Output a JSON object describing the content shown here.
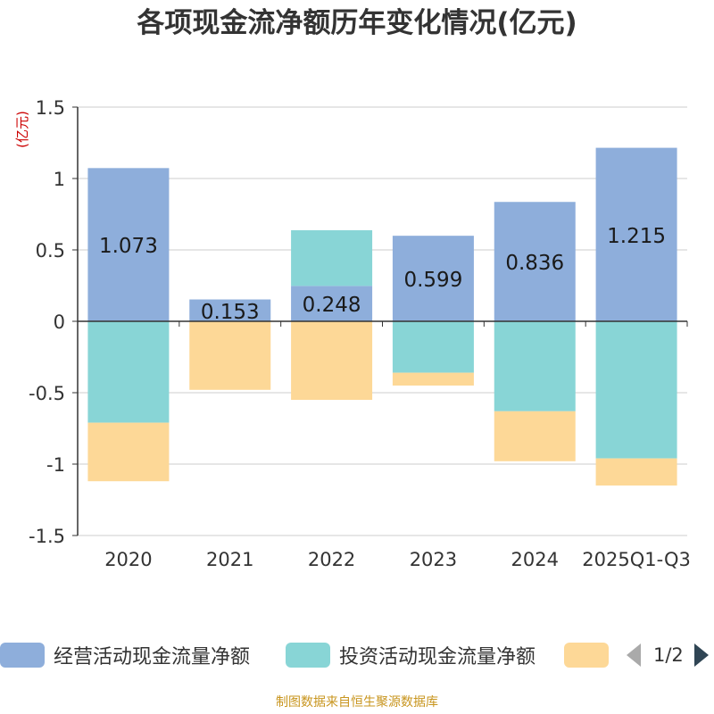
{
  "chart_data": {
    "type": "bar",
    "stacked": true,
    "title": "各项现金流净额历年变化情况(亿元)",
    "ylabel": "(亿元)",
    "xlabel": "",
    "ylim": [
      -1.5,
      1.5
    ],
    "yticks": [
      1.5,
      1,
      0.5,
      0,
      -0.5,
      -1,
      -1.5
    ],
    "ytick_labels": [
      "1.5",
      "1",
      "0.5",
      "0",
      "-0.5",
      "-1",
      "-1.5"
    ],
    "categories": [
      "2020",
      "2021",
      "2022",
      "2023",
      "2024",
      "2025Q1-Q3"
    ],
    "series": [
      {
        "name": "经营活动现金流量净额",
        "color": "#8eaedb",
        "values": [
          1.073,
          0.153,
          0.248,
          0.599,
          0.836,
          1.215
        ],
        "labels": [
          "1.073",
          "0.153",
          "0.248",
          "0.599",
          "0.836",
          "1.215"
        ]
      },
      {
        "name": "投资活动现金流量净额",
        "color": "#88d5d6",
        "values": [
          -0.71,
          0.0,
          0.39,
          -0.36,
          -0.63,
          -0.96
        ]
      },
      {
        "name": "",
        "color": "#fdd897",
        "values": [
          -0.41,
          -0.48,
          -0.55,
          -0.09,
          -0.35,
          -0.19
        ]
      }
    ],
    "legend_position": "bottom",
    "grid": true
  },
  "legend": {
    "items": [
      {
        "label": "经营活动现金流量净额",
        "color": "#8eaedb"
      },
      {
        "label": "投资活动现金流量净额",
        "color": "#88d5d6"
      },
      {
        "label": "",
        "color": "#fdd897"
      }
    ],
    "page_text": "1/2",
    "prev_icon": "triangle-left-icon",
    "next_icon": "triangle-right-icon"
  },
  "source": "制图数据来自恒生聚源数据库"
}
